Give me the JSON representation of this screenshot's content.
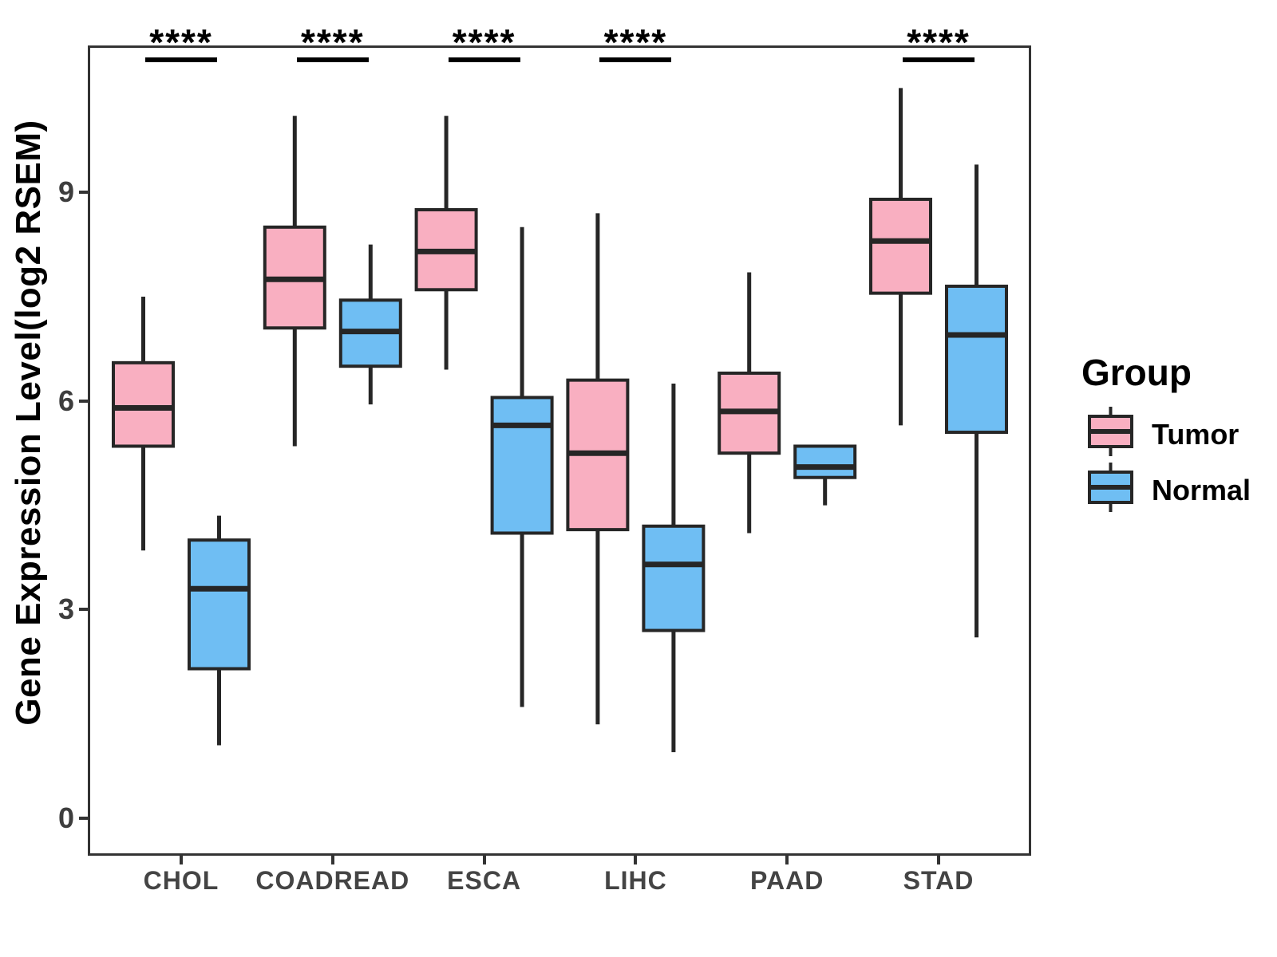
{
  "figure": {
    "background": "#FFFFFF",
    "panel_border_color": "#333333",
    "box_stroke_color": "#262626"
  },
  "legend": {
    "title": "Group",
    "items": [
      {
        "label": "Tumor",
        "color": "#F9AFC1"
      },
      {
        "label": "Normal",
        "color": "#6FBEF3"
      }
    ]
  },
  "chart_data": {
    "type": "boxplot",
    "title": "",
    "xlabel": "",
    "ylabel": "Gene Expression Level(log2 RSEM)",
    "ylim": [
      0,
      11.1
    ],
    "yticks": [
      0,
      3,
      6,
      9
    ],
    "grid": false,
    "legend_position": "right",
    "categories": [
      "CHOL",
      "COADREAD",
      "ESCA",
      "LIHC",
      "PAAD",
      "STAD"
    ],
    "groups": [
      "Tumor",
      "Normal"
    ],
    "group_colors": {
      "Tumor": "#F9AFC1",
      "Normal": "#6FBEF3"
    },
    "significance_by_category": {
      "CHOL": "****",
      "COADREAD": "****",
      "ESCA": "****",
      "LIHC": "****",
      "PAAD": null,
      "STAD": "****"
    },
    "boxes": [
      {
        "category": "CHOL",
        "group": "Tumor",
        "whisker_low": 3.85,
        "q1": 5.35,
        "median": 5.9,
        "q3": 6.55,
        "whisker_high": 7.5
      },
      {
        "category": "CHOL",
        "group": "Normal",
        "whisker_low": 1.05,
        "q1": 2.15,
        "median": 3.3,
        "q3": 4.0,
        "whisker_high": 4.35
      },
      {
        "category": "COADREAD",
        "group": "Tumor",
        "whisker_low": 5.35,
        "q1": 7.05,
        "median": 7.75,
        "q3": 8.5,
        "whisker_high": 10.1
      },
      {
        "category": "COADREAD",
        "group": "Normal",
        "whisker_low": 5.95,
        "q1": 6.5,
        "median": 7.0,
        "q3": 7.45,
        "whisker_high": 8.25
      },
      {
        "category": "ESCA",
        "group": "Tumor",
        "whisker_low": 6.45,
        "q1": 7.6,
        "median": 8.15,
        "q3": 8.75,
        "whisker_high": 10.1
      },
      {
        "category": "ESCA",
        "group": "Normal",
        "whisker_low": 1.6,
        "q1": 4.1,
        "median": 5.65,
        "q3": 6.05,
        "whisker_high": 8.5
      },
      {
        "category": "LIHC",
        "group": "Tumor",
        "whisker_low": 1.35,
        "q1": 4.15,
        "median": 5.25,
        "q3": 6.3,
        "whisker_high": 8.7
      },
      {
        "category": "LIHC",
        "group": "Normal",
        "whisker_low": 0.95,
        "q1": 2.7,
        "median": 3.65,
        "q3": 4.2,
        "whisker_high": 6.25
      },
      {
        "category": "PAAD",
        "group": "Tumor",
        "whisker_low": 4.1,
        "q1": 5.25,
        "median": 5.85,
        "q3": 6.4,
        "whisker_high": 7.85
      },
      {
        "category": "PAAD",
        "group": "Normal",
        "whisker_low": 4.5,
        "q1": 4.9,
        "median": 5.05,
        "q3": 5.35,
        "whisker_high": 5.35
      },
      {
        "category": "STAD",
        "group": "Tumor",
        "whisker_low": 5.65,
        "q1": 7.55,
        "median": 8.3,
        "q3": 8.9,
        "whisker_high": 10.5
      },
      {
        "category": "STAD",
        "group": "Normal",
        "whisker_low": 2.6,
        "q1": 5.55,
        "median": 6.95,
        "q3": 7.65,
        "whisker_high": 9.4
      }
    ]
  }
}
